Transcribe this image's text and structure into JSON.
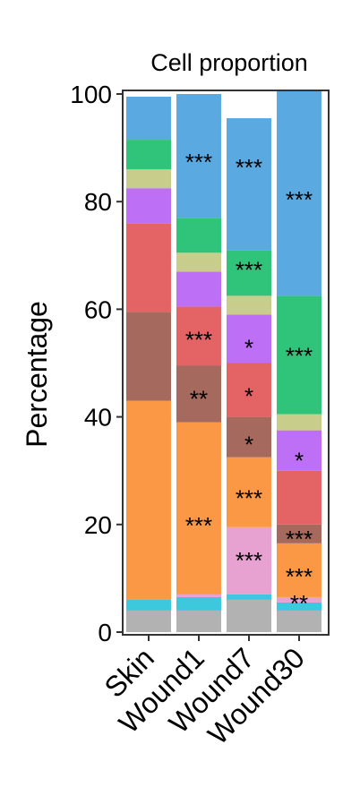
{
  "chart_data": {
    "type": "bar",
    "stacked": true,
    "title": "Cell proportion",
    "xlabel": "",
    "ylabel": "Percentage",
    "ylim": [
      0,
      100
    ],
    "yticks": [
      0,
      20,
      40,
      60,
      80,
      100
    ],
    "categories": [
      "Skin",
      "Wound1",
      "Wound7",
      "Wound30"
    ],
    "series": [
      {
        "color": "#b2b2b2",
        "values": [
          4,
          4,
          6,
          4
        ]
      },
      {
        "color": "#3ec8de",
        "values": [
          2,
          2.5,
          1,
          1.5
        ]
      },
      {
        "color": "#e8a2d2",
        "values": [
          0,
          0.5,
          12.5,
          1
        ]
      },
      {
        "color": "#fb9845",
        "values": [
          37,
          32,
          13,
          10
        ]
      },
      {
        "color": "#a5695e",
        "values": [
          16.5,
          10.5,
          7.5,
          3.5
        ]
      },
      {
        "color": "#e46466",
        "values": [
          16.5,
          11,
          10,
          10
        ]
      },
      {
        "color": "#bd6ff5",
        "values": [
          6.5,
          6.5,
          9,
          7.5
        ]
      },
      {
        "color": "#c9cd8b",
        "values": [
          3.5,
          3.5,
          3.5,
          3
        ]
      },
      {
        "color": "#2fc479",
        "values": [
          5.5,
          6.5,
          8.5,
          22
        ]
      },
      {
        "color": "#5aa9e0",
        "values": [
          8,
          23,
          24.5,
          38
        ]
      }
    ],
    "annotations": [
      {
        "category": "Wound1",
        "y": 88,
        "text": "***"
      },
      {
        "category": "Wound1",
        "y": 55,
        "text": "***"
      },
      {
        "category": "Wound1",
        "y": 44,
        "text": "**"
      },
      {
        "category": "Wound1",
        "y": 20.5,
        "text": "***"
      },
      {
        "category": "Wound7",
        "y": 87,
        "text": "***"
      },
      {
        "category": "Wound7",
        "y": 68,
        "text": "***"
      },
      {
        "category": "Wound7",
        "y": 53.5,
        "text": "*"
      },
      {
        "category": "Wound7",
        "y": 44.5,
        "text": "*"
      },
      {
        "category": "Wound7",
        "y": 35.5,
        "text": "*"
      },
      {
        "category": "Wound7",
        "y": 25.5,
        "text": "***"
      },
      {
        "category": "Wound7",
        "y": 14,
        "text": "***"
      },
      {
        "category": "Wound30",
        "y": 81,
        "text": "***"
      },
      {
        "category": "Wound30",
        "y": 52,
        "text": "***"
      },
      {
        "category": "Wound30",
        "y": 32.5,
        "text": "*"
      },
      {
        "category": "Wound30",
        "y": 18,
        "text": "***"
      },
      {
        "category": "Wound30",
        "y": 11,
        "text": "***"
      },
      {
        "category": "Wound30",
        "y": 6,
        "text": "**"
      }
    ]
  }
}
